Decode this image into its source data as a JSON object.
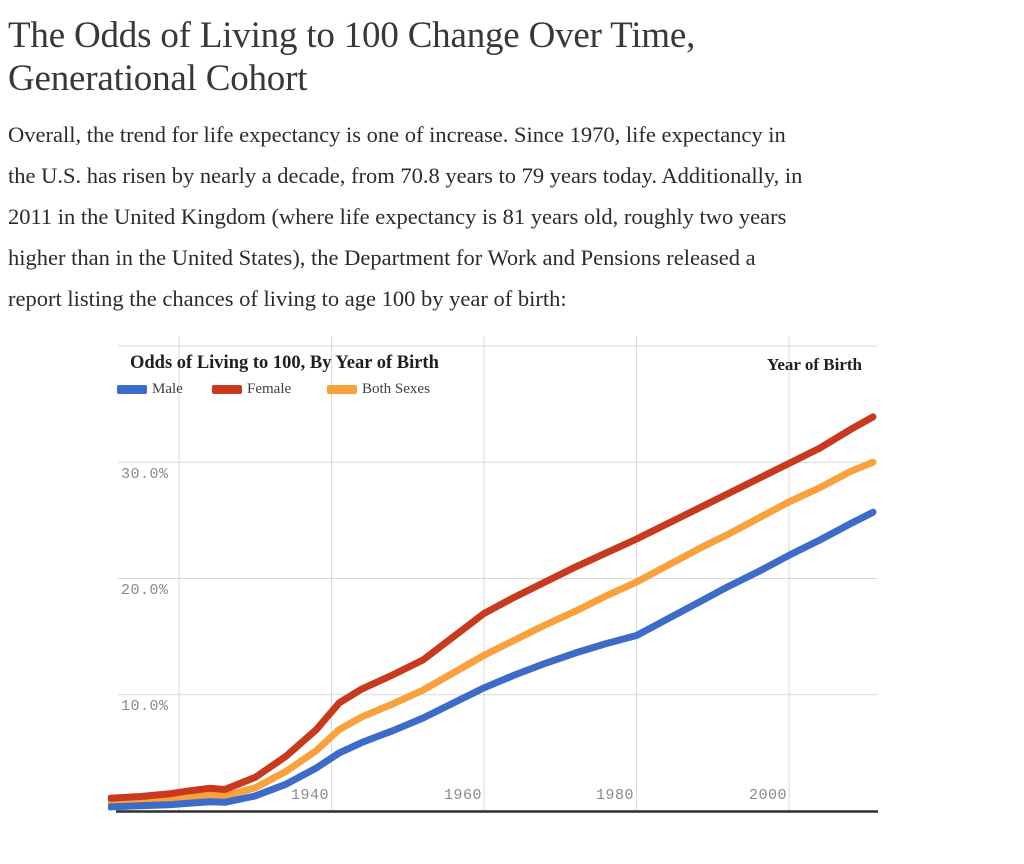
{
  "page": {
    "title_line1": "The Odds of Living to 100 Change Over Time,",
    "title_line2": "Generational Cohort",
    "paragraph_lines": [
      "Overall, the trend for life expectancy is one of increase. Since 1970, life expectancy in",
      "the U.S. has risen by nearly a decade, from 70.8 years to 79 years today. Additionally, in",
      "2011 in the United Kingdom (where life expectancy is 81 years old, roughly two years",
      "higher than in the United States), the Department for Work and Pensions released a",
      "report listing the chances of living to age 100 by year of birth:"
    ]
  },
  "chart_data": {
    "type": "line",
    "title": "Odds of Living to 100, By Year of Birth",
    "x_axis_title": "Year of Birth",
    "xlim": [
      1912,
      2011
    ],
    "ylim": [
      0,
      40
    ],
    "grid": true,
    "legend_position": "top-left",
    "x_gridline_years": [
      1920,
      1940,
      1960,
      1980,
      2000
    ],
    "y_gridline_values": [
      40,
      30,
      20,
      10
    ],
    "x_tick_labels": [
      "1940",
      "1960",
      "1980",
      "2000"
    ],
    "y_tick_labels": [
      "30.0%",
      "20.0%",
      "10.0%"
    ],
    "colors": {
      "male": "#3c6cc8",
      "female": "#c8391e",
      "both_sexes": "#f8a13d",
      "gridline": "#d9d9d9",
      "axis": "#2f2f2f",
      "tick_text": "#8a8a8a"
    },
    "x": [
      1911,
      1915,
      1919,
      1921,
      1924,
      1926,
      1930,
      1934,
      1938,
      1941,
      1944,
      1948,
      1952,
      1956,
      1960,
      1964,
      1968,
      1972,
      1976,
      1980,
      1984,
      1988,
      1992,
      1996,
      2000,
      2004,
      2008,
      2011
    ],
    "series": [
      {
        "name": "Male",
        "color": "#3c6cc8",
        "values": [
          0.35,
          0.45,
          0.55,
          0.65,
          0.8,
          0.75,
          1.3,
          2.3,
          3.7,
          5.0,
          5.9,
          6.9,
          8.0,
          9.3,
          10.6,
          11.7,
          12.7,
          13.6,
          14.4,
          15.1,
          16.5,
          17.9,
          19.3,
          20.6,
          22.0,
          23.3,
          24.7,
          25.7
        ]
      },
      {
        "name": "Female",
        "color": "#c8391e",
        "values": [
          1.1,
          1.25,
          1.5,
          1.7,
          1.95,
          1.85,
          2.9,
          4.7,
          7.0,
          9.3,
          10.5,
          11.7,
          13.0,
          15.0,
          17.0,
          18.4,
          19.7,
          21.0,
          22.2,
          23.4,
          24.7,
          26.0,
          27.3,
          28.6,
          29.9,
          31.2,
          32.8,
          33.9
        ]
      },
      {
        "name": "Both Sexes",
        "color": "#f8a13d",
        "values": [
          0.7,
          0.8,
          1.0,
          1.15,
          1.35,
          1.3,
          2.0,
          3.4,
          5.2,
          7.0,
          8.1,
          9.2,
          10.4,
          11.9,
          13.4,
          14.7,
          16.0,
          17.2,
          18.5,
          19.7,
          21.1,
          22.5,
          23.8,
          25.2,
          26.6,
          27.8,
          29.2,
          30.0
        ]
      }
    ]
  }
}
